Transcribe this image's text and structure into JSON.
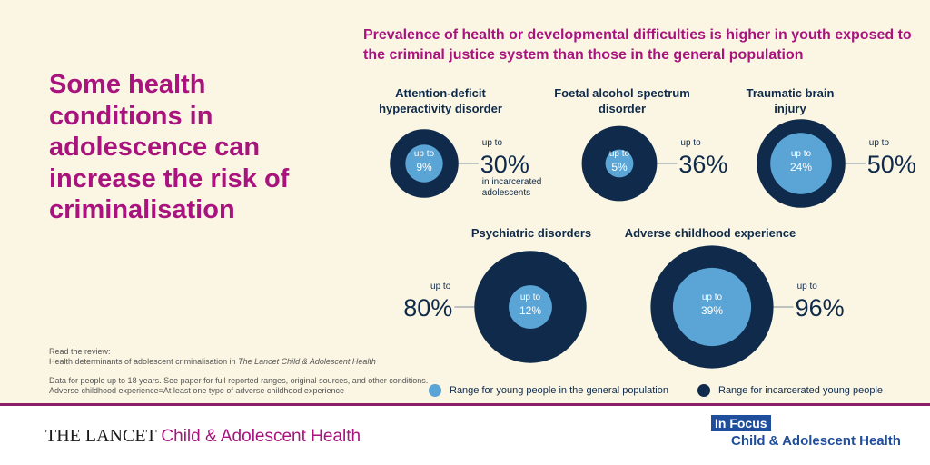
{
  "headline": "Some health conditions in adolescence can increase the risk of criminalisation",
  "subtitle": "Prevalence of health or developmental difficulties is higher in youth exposed to the criminal justice system than those in the general population",
  "chart_data": {
    "type": "nested-bubble",
    "unit": "%",
    "colors": {
      "general": "#5ba5d6",
      "incarcerated": "#0f2a4a",
      "connector": "#9aa4ad"
    },
    "series": [
      {
        "name": "Range for young people in the general population"
      },
      {
        "name": "Range for incarcerated young people"
      }
    ],
    "conditions": [
      {
        "name": "Attention-deficit hyperactivity disorder",
        "general": 9,
        "incarcerated": 30,
        "general_label": "9%",
        "incarcerated_label": "30%",
        "inner_prefix": "up to",
        "outer_prefix": "up to",
        "outer_note": "in incarcerated adolescents"
      },
      {
        "name": "Foetal alcohol spectrum disorder",
        "general": 5,
        "incarcerated": 36,
        "general_label": "5%",
        "incarcerated_label": "36%",
        "inner_prefix": "up to",
        "outer_prefix": "up to",
        "outer_note": ""
      },
      {
        "name": "Traumatic brain injury",
        "general": 24,
        "incarcerated": 50,
        "general_label": "24%",
        "incarcerated_label": "50%",
        "inner_prefix": "up to",
        "outer_prefix": "up to",
        "outer_note": ""
      },
      {
        "name": "Psychiatric disorders",
        "general": 12,
        "incarcerated": 80,
        "general_label": "12%",
        "incarcerated_label": "80%",
        "inner_prefix": "up to",
        "outer_prefix": "up to",
        "outer_note": ""
      },
      {
        "name": "Adverse childhood experience",
        "general": 39,
        "incarcerated": 96,
        "general_label": "39%",
        "incarcerated_label": "96%",
        "inner_prefix": "up to",
        "outer_prefix": "up to",
        "outer_note": ""
      }
    ]
  },
  "read_review": {
    "line1": "Read the review:",
    "line2_prefix": "Health determinants of adolescent criminalisation in ",
    "line2_journal": "The Lancet Child & Adolescent Health"
  },
  "notes": {
    "line1": "Data for people up to 18 years.  See paper for full reported ranges, original sources, and other conditions.",
    "line2": "Adverse childhood experience=At least one type of adverse childhood experience"
  },
  "legend": {
    "general": "Range for young people in the general population",
    "incarcerated": "Range for incarcerated young people"
  },
  "footer": {
    "lancet": "THE LANCET",
    "journal": "Child & Adolescent Health",
    "in_focus": "In Focus",
    "in_focus_sub": "Child & Adolescent Health"
  }
}
